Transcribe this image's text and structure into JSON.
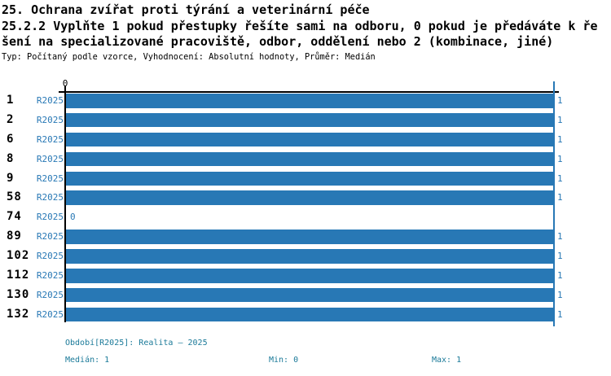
{
  "header": {
    "title": "25. Ochrana zvířat proti týrání a veterinární péče",
    "subtitle_lines": [
      "25.2.2 Vyplňte 1 pokud přestupky řešíte sami na odboru, 0 pokud je předáváte k ře",
      "šení na specializované pracoviště, odbor, oddělení nebo 2 (kombinace, jiné)"
    ],
    "meta": "Typ: Počítaný podle vzorce, Vyhodnocení: Absolutní hodnoty, Průměr: Medián"
  },
  "chart_data": {
    "type": "bar",
    "orientation": "horizontal",
    "categories": [
      "1",
      "2",
      "6",
      "8",
      "9",
      "58",
      "74",
      "89",
      "102",
      "112",
      "130",
      "132"
    ],
    "series": [
      {
        "name": "R2025",
        "values": [
          1,
          1,
          1,
          1,
          1,
          1,
          0,
          1,
          1,
          1,
          1,
          1
        ]
      }
    ],
    "value_labels": [
      "1",
      "1",
      "1",
      "1",
      "1",
      "1",
      "0",
      "1",
      "1",
      "1",
      "1",
      "1"
    ],
    "xlim": [
      0,
      1
    ],
    "x_tick_labels": [
      "0"
    ],
    "grid": "max-line-only",
    "legend": "none",
    "bar_color": "#2878B5",
    "label_color": "#2878B5",
    "axis_color": "#000000",
    "max_line_color": "#2878B5"
  },
  "footer": {
    "period": "Období[R2025]: Realita – 2025",
    "median": "Medián: 1",
    "min": "Min: 0",
    "max": "Max: 1",
    "text_color": "#1B7A99"
  }
}
